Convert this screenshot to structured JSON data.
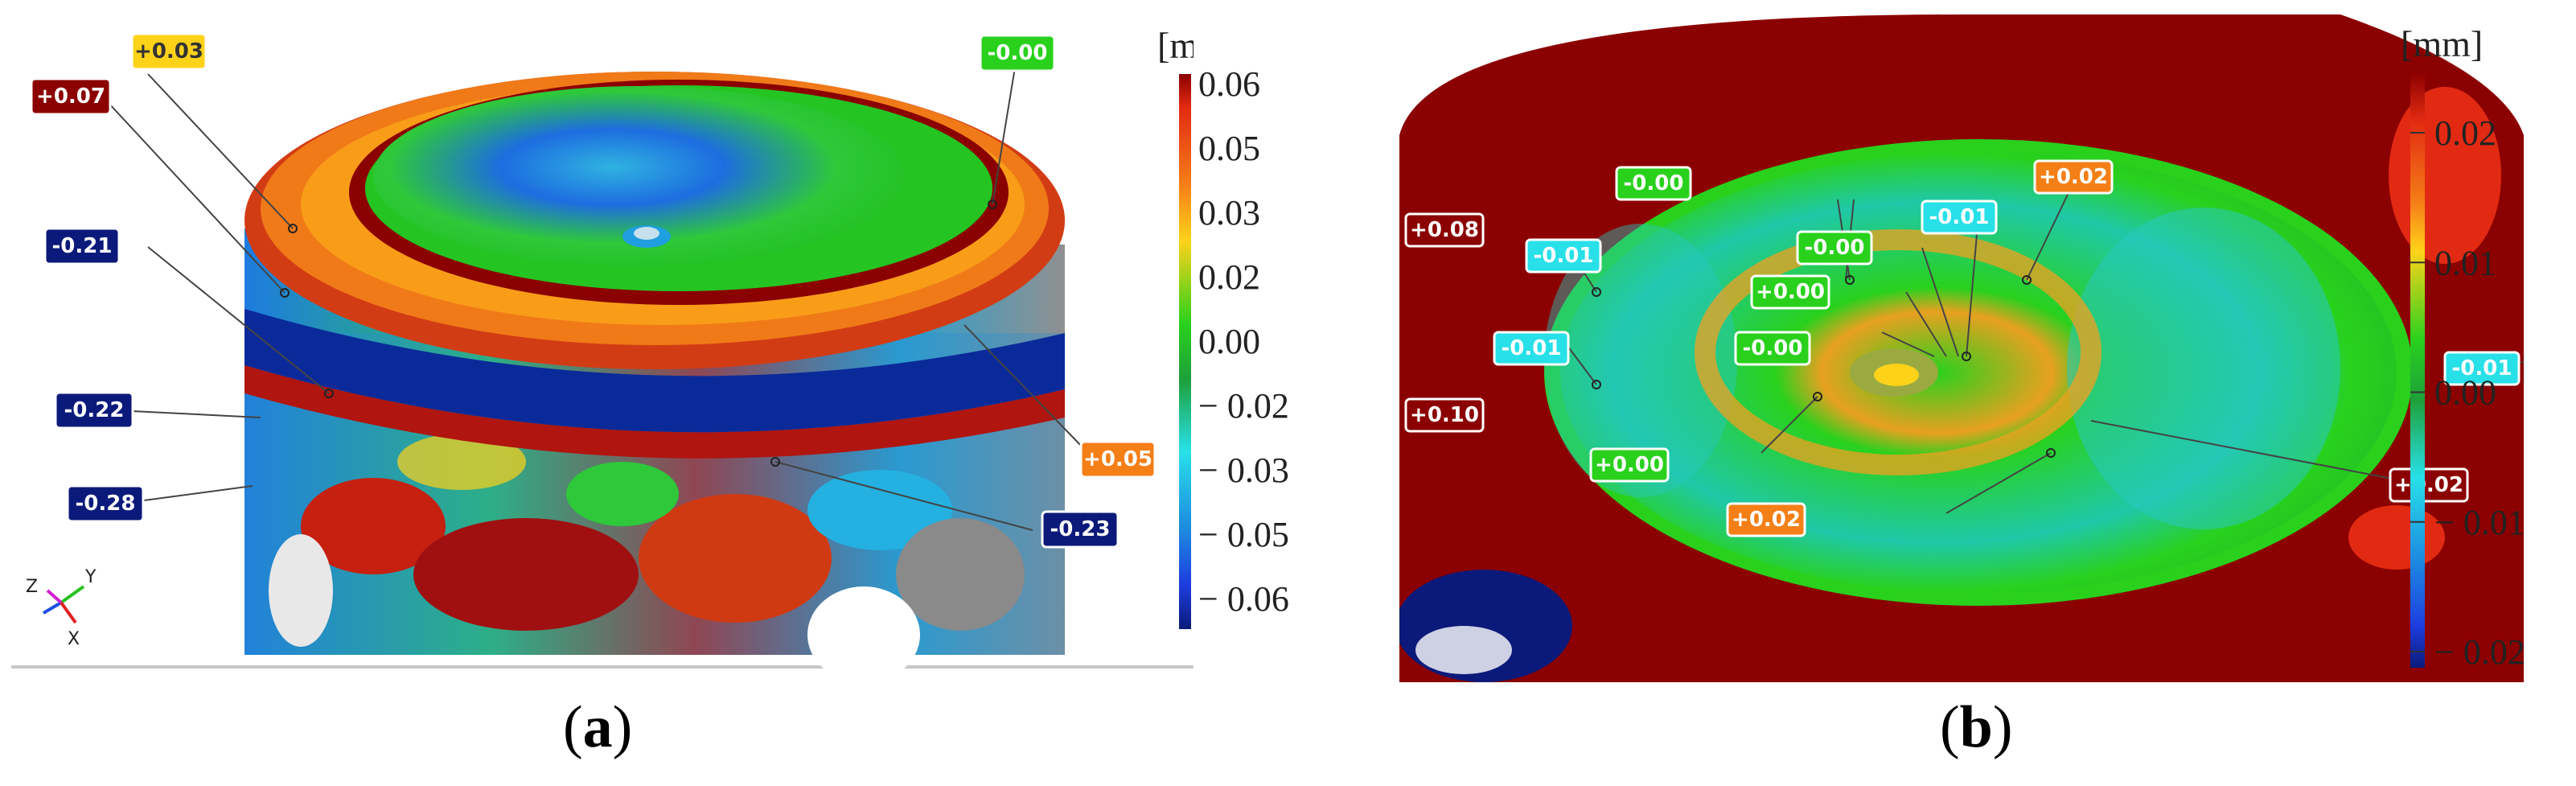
{
  "panel_a": {
    "caption_open": "(",
    "caption_letter": "a",
    "caption_close": ")",
    "colorbar": {
      "unit": "[mm]",
      "ticks": [
        "0.06",
        "0.05",
        "0.03",
        "0.02",
        "0.00",
        "− 0.02",
        "− 0.03",
        "− 0.05",
        "− 0.06"
      ]
    },
    "labels": [
      "+0.03",
      "+0.07",
      "-0.00",
      "-0.21",
      "-0.22",
      "-0.28",
      "+0.05",
      "-0.23"
    ],
    "axes": {
      "x": "X",
      "y": "Y",
      "z": "Z"
    }
  },
  "panel_b": {
    "caption_open": "(",
    "caption_letter": "b",
    "caption_close": ")",
    "colorbar": {
      "unit": "[mm]",
      "ticks": [
        "0.02",
        "0.01",
        "0.00",
        "− 0.01",
        "− 0.02"
      ]
    },
    "labels": [
      "+0.08",
      "+0.10",
      "-0.01",
      "-0.00",
      "-0.01",
      "+0.00",
      "-0.00",
      "+0.02",
      "-0.01",
      "-0.00",
      "+0.00",
      "-0.01",
      "+0.02",
      "+0.02"
    ]
  },
  "colors": {
    "dark_red": "#8b0000",
    "red": "#e22a12",
    "orange": "#f57f17",
    "yellow": "#ffd21a",
    "green": "#29d11d",
    "cyan": "#28e0e8",
    "blue": "#1d5de0",
    "navy": "#0b1a7a"
  }
}
